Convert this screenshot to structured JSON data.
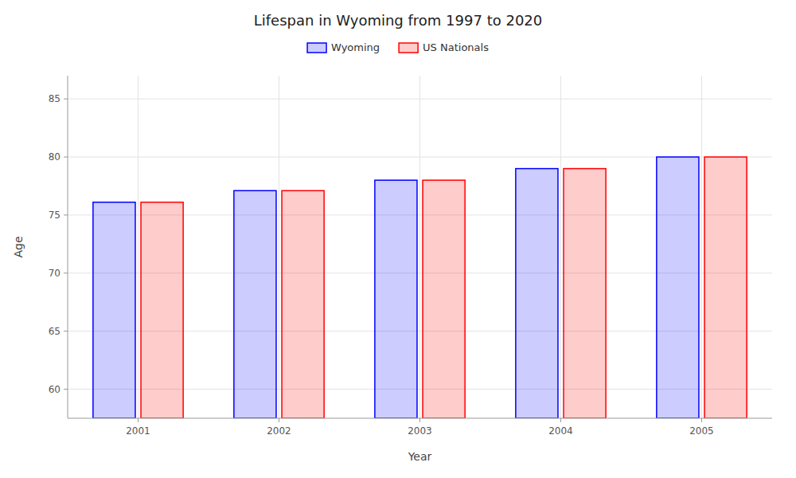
{
  "chart_data": {
    "type": "bar",
    "title": "Lifespan in Wyoming from 1997 to 2020",
    "x_label": "Year",
    "y_label": "Age",
    "categories": [
      "2001",
      "2002",
      "2003",
      "2004",
      "2005"
    ],
    "series": [
      {
        "name": "Wyoming",
        "color": "#0000ff",
        "values": [
          76.1,
          77.1,
          78.0,
          79.0,
          80.0
        ]
      },
      {
        "name": "US Nationals",
        "color": "#ff0000",
        "values": [
          76.1,
          77.1,
          78.0,
          79.0,
          80.0
        ]
      }
    ],
    "ylim": [
      57.5,
      87
    ],
    "yticks": [
      60,
      65,
      70,
      75,
      80,
      85
    ],
    "grid": true,
    "legend": "top"
  }
}
